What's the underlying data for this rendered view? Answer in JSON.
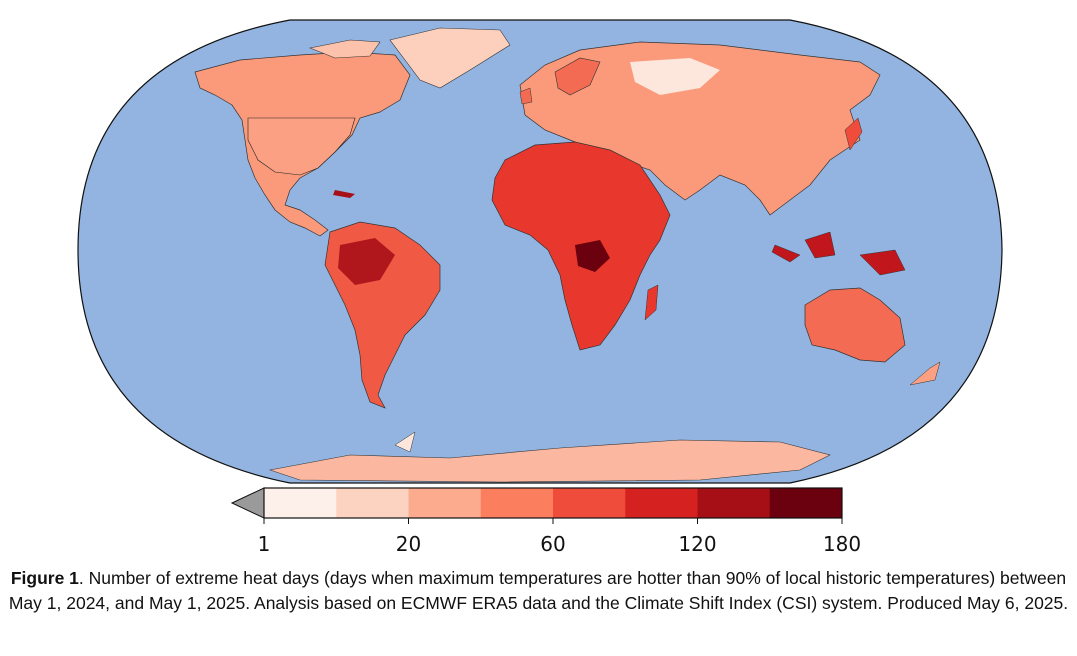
{
  "map": {
    "ocean_color": "#93b4e0",
    "border_color": "#1a1a1a",
    "description_visible": false
  },
  "colorbar": {
    "ticks": [
      "1",
      "20",
      "60",
      "120",
      "180"
    ],
    "bins": [
      {
        "color": "#fdf0eb"
      },
      {
        "color": "#fcd3c1"
      },
      {
        "color": "#fcab8f"
      },
      {
        "color": "#fb7f5f"
      },
      {
        "color": "#f04c3b"
      },
      {
        "color": "#d52221"
      },
      {
        "color": "#a50f15"
      },
      {
        "color": "#6b010e"
      }
    ],
    "under_color": "#9a9a9a"
  },
  "caption": {
    "label": "Figure 1",
    "text": ". Number of extreme heat days (days when maximum temperatures are hotter than 90% of local historic temperatures) between May 1, 2024, and May 1, 2025. Analysis based on ECMWF ERA5 data and the Climate Shift Index (CSI) system. Produced May 6, 2025."
  }
}
